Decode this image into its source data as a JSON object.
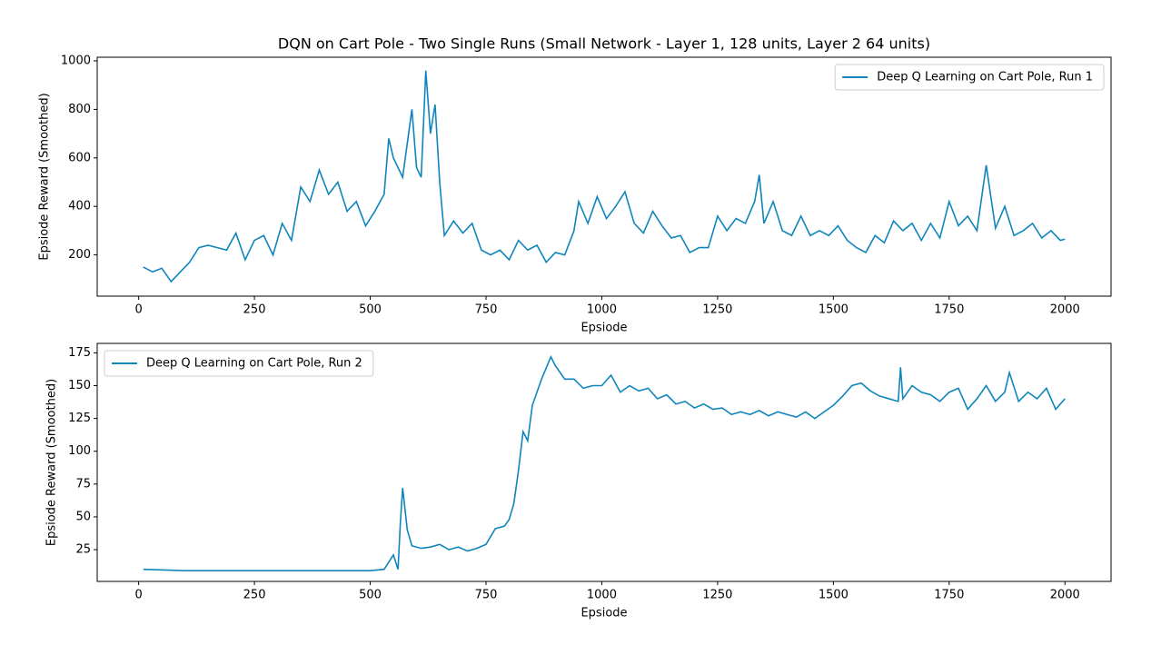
{
  "chart_data": [
    {
      "type": "line",
      "title": "DQN on Cart Pole - Two Single Runs (Small Network - Layer 1, 128 units, Layer 2 64 units)",
      "xlabel": "Epsiode",
      "ylabel": "Epsiode Reward (Smoothed)",
      "x": [
        10,
        30,
        50,
        70,
        90,
        110,
        130,
        150,
        170,
        190,
        210,
        230,
        250,
        270,
        290,
        310,
        330,
        350,
        370,
        390,
        410,
        430,
        450,
        470,
        490,
        510,
        530,
        540,
        550,
        570,
        590,
        600,
        610,
        620,
        630,
        640,
        650,
        660,
        680,
        700,
        720,
        740,
        760,
        780,
        800,
        820,
        840,
        860,
        880,
        900,
        920,
        940,
        950,
        970,
        990,
        1010,
        1030,
        1050,
        1070,
        1090,
        1110,
        1130,
        1150,
        1170,
        1190,
        1210,
        1230,
        1250,
        1270,
        1290,
        1310,
        1330,
        1340,
        1350,
        1370,
        1390,
        1410,
        1430,
        1450,
        1470,
        1490,
        1510,
        1530,
        1550,
        1570,
        1590,
        1610,
        1630,
        1650,
        1670,
        1690,
        1710,
        1730,
        1750,
        1770,
        1790,
        1810,
        1830,
        1850,
        1870,
        1890,
        1910,
        1930,
        1950,
        1970,
        1990,
        2000
      ],
      "series": [
        {
          "name": "Deep Q Learning on Cart Pole, Run 1",
          "color": "#0f85bc",
          "values": [
            150,
            130,
            145,
            90,
            130,
            170,
            230,
            240,
            230,
            220,
            290,
            180,
            260,
            280,
            200,
            330,
            260,
            480,
            420,
            550,
            450,
            500,
            380,
            420,
            320,
            380,
            450,
            680,
            600,
            520,
            800,
            560,
            520,
            960,
            700,
            820,
            500,
            280,
            340,
            290,
            330,
            220,
            200,
            220,
            180,
            260,
            220,
            240,
            170,
            210,
            200,
            300,
            420,
            330,
            440,
            350,
            400,
            460,
            330,
            290,
            380,
            320,
            270,
            280,
            210,
            230,
            230,
            360,
            300,
            350,
            330,
            420,
            530,
            330,
            420,
            300,
            280,
            360,
            280,
            300,
            280,
            320,
            260,
            230,
            210,
            280,
            250,
            340,
            300,
            330,
            260,
            330,
            270,
            420,
            320,
            360,
            300,
            570,
            310,
            400,
            280,
            300,
            330,
            270,
            300,
            260,
            265
          ]
        }
      ],
      "xlim": [
        -89.5,
        2099.5
      ],
      "xticks": [
        0,
        250,
        500,
        750,
        1000,
        1250,
        1500,
        1750,
        2000
      ],
      "ylim": [
        30,
        1015
      ],
      "yticks": [
        200,
        400,
        600,
        800,
        1000
      ],
      "legend": "upper right",
      "grid": false
    },
    {
      "type": "line",
      "xlabel": "Epsiode",
      "ylabel": "Epsiode Reward (Smoothed)",
      "x": [
        10,
        100,
        200,
        300,
        400,
        500,
        530,
        550,
        560,
        565,
        570,
        580,
        590,
        610,
        630,
        650,
        670,
        690,
        710,
        730,
        750,
        770,
        790,
        800,
        810,
        820,
        830,
        840,
        850,
        870,
        890,
        900,
        920,
        940,
        960,
        980,
        1000,
        1020,
        1040,
        1060,
        1080,
        1100,
        1120,
        1140,
        1160,
        1180,
        1200,
        1220,
        1240,
        1260,
        1280,
        1300,
        1320,
        1340,
        1360,
        1380,
        1400,
        1420,
        1440,
        1460,
        1480,
        1500,
        1520,
        1540,
        1560,
        1580,
        1600,
        1620,
        1640,
        1645,
        1650,
        1670,
        1690,
        1710,
        1730,
        1750,
        1770,
        1790,
        1810,
        1830,
        1850,
        1870,
        1880,
        1900,
        1920,
        1940,
        1960,
        1980,
        2000
      ],
      "series": [
        {
          "name": "Deep Q Learning on Cart Pole, Run 2",
          "color": "#0f85bc",
          "values": [
            10,
            9,
            9,
            9,
            9,
            9,
            10,
            21,
            10,
            45,
            72,
            40,
            28,
            26,
            27,
            29,
            25,
            27,
            24,
            26,
            29,
            41,
            43,
            48,
            60,
            85,
            115,
            108,
            135,
            155,
            172,
            165,
            155,
            155,
            148,
            150,
            150,
            158,
            145,
            150,
            146,
            148,
            140,
            143,
            136,
            138,
            133,
            136,
            132,
            133,
            128,
            130,
            128,
            131,
            127,
            130,
            128,
            126,
            130,
            125,
            130,
            135,
            142,
            150,
            152,
            146,
            142,
            140,
            138,
            164,
            140,
            150,
            145,
            143,
            138,
            145,
            148,
            132,
            140,
            150,
            138,
            145,
            160,
            138,
            145,
            140,
            148,
            132,
            140
          ]
        }
      ],
      "xlim": [
        -89.5,
        2099.5
      ],
      "xticks": [
        0,
        250,
        500,
        750,
        1000,
        1250,
        1500,
        1750,
        2000
      ],
      "ylim": [
        0.8,
        182.2
      ],
      "yticks": [
        25,
        50,
        75,
        100,
        125,
        150,
        175
      ],
      "legend": "upper left",
      "grid": false
    }
  ]
}
